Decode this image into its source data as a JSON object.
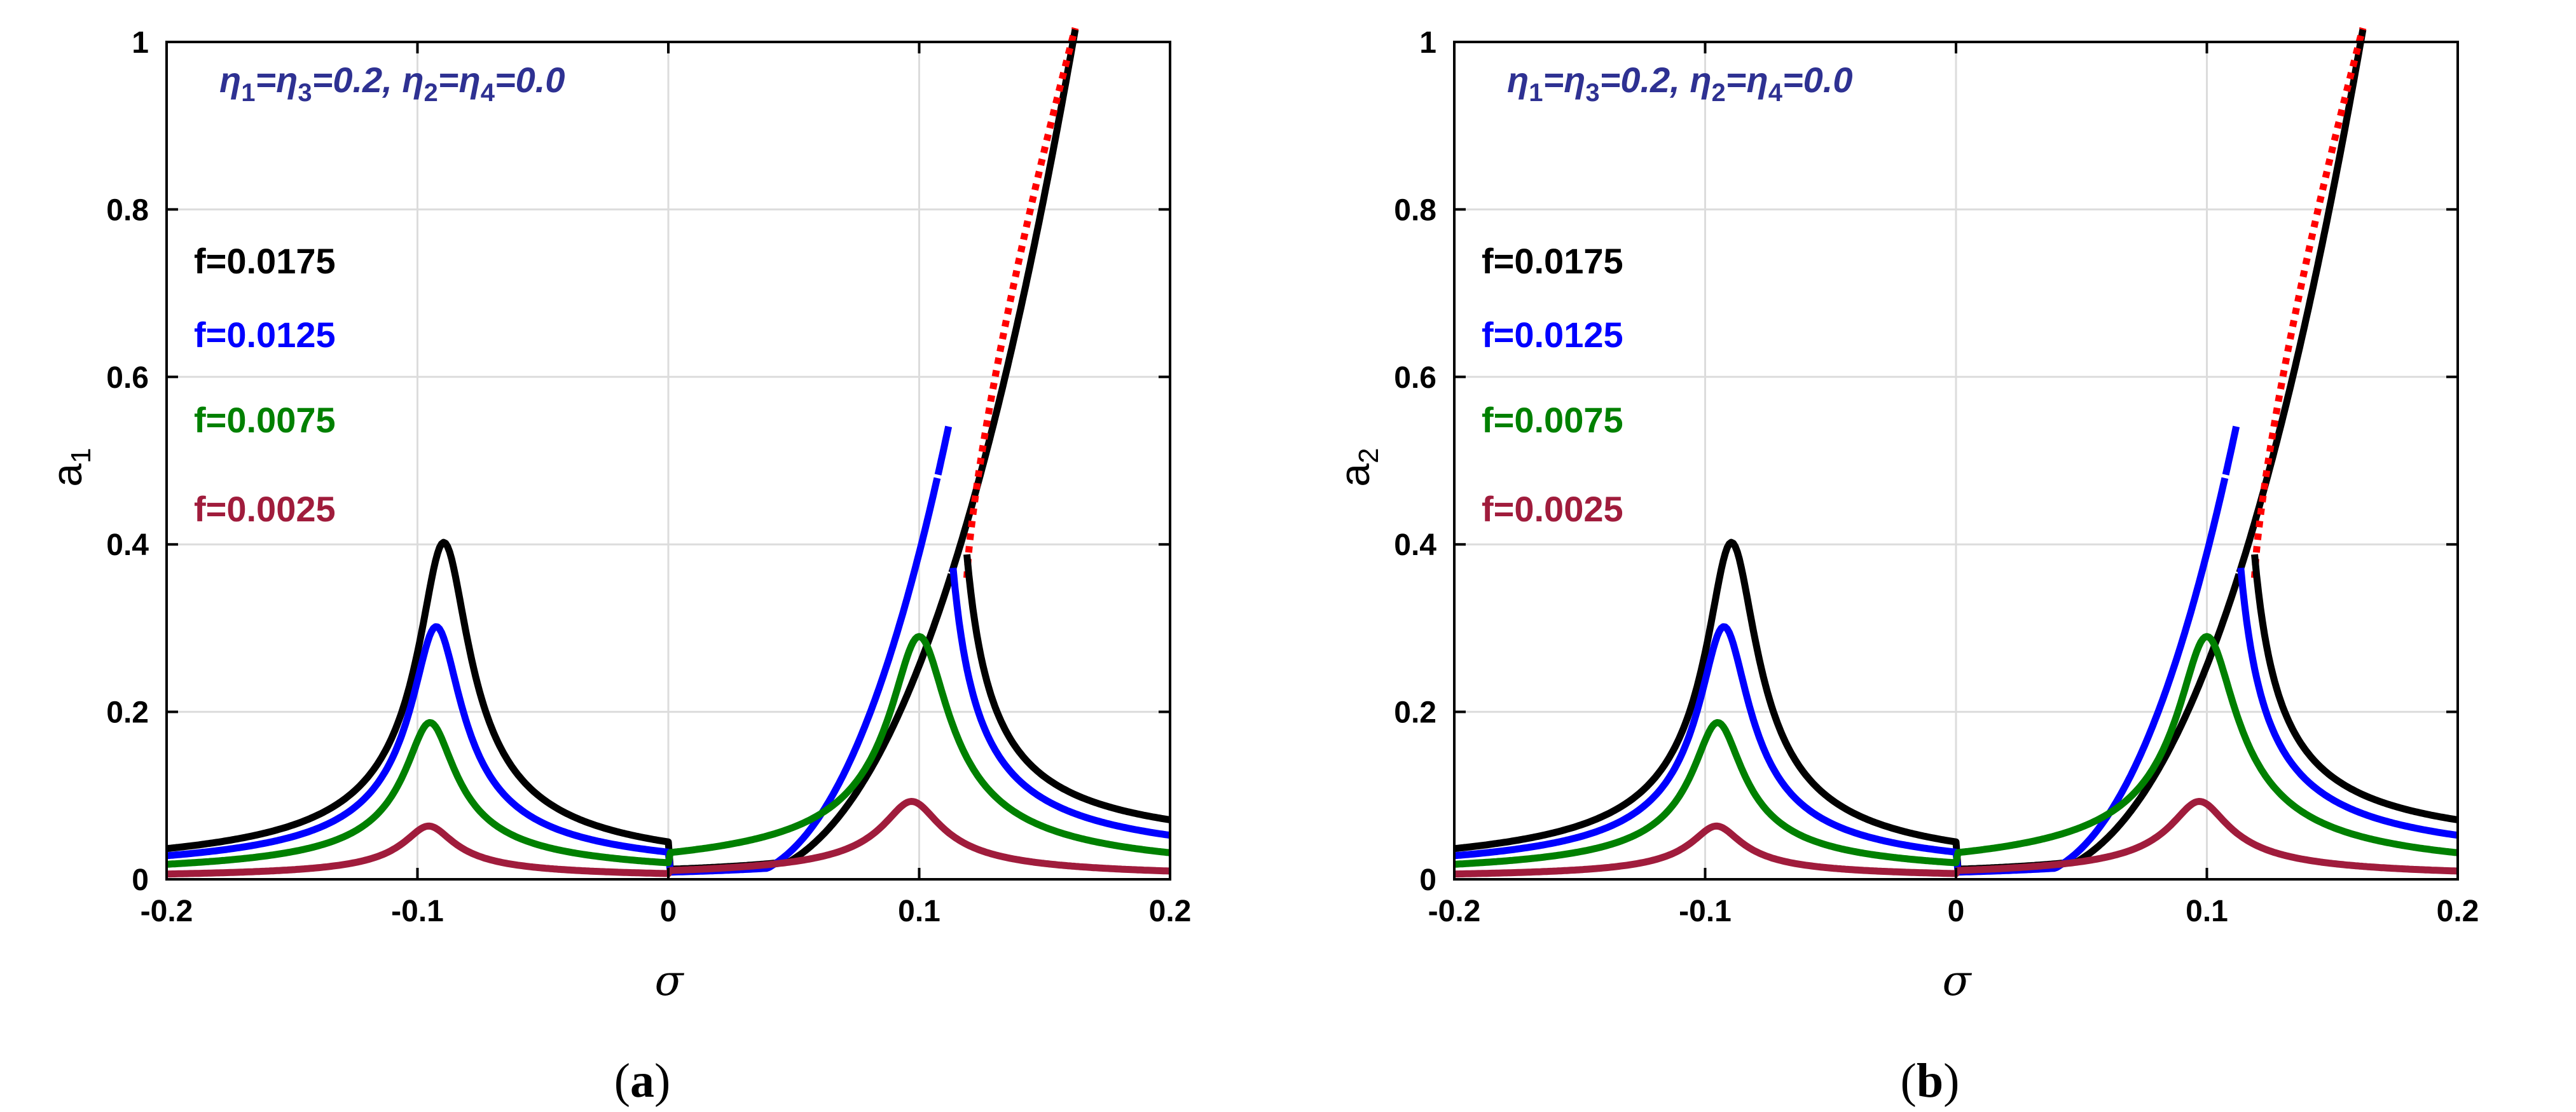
{
  "colors": {
    "f0175": "#000000",
    "f0125": "#0000ff",
    "f0075": "#008000",
    "f0025": "#a01c3c",
    "unstable": "#ff0000",
    "annotation": "#2e3192",
    "grid": "#dcdcdc"
  },
  "chart_data": [
    {
      "type": "line",
      "panel": "a",
      "caption_prefix": "(",
      "caption_letter": "a",
      "caption_suffix": ")",
      "xlabel": "σ",
      "ylabel_main": "a",
      "ylabel_sub": "1",
      "xlim": [
        -0.2,
        0.2
      ],
      "ylim": [
        0,
        1
      ],
      "xticks": [
        "-0.2",
        "-0.1",
        "0",
        "0.1",
        "0.2"
      ],
      "yticks": [
        "0",
        "0.2",
        "0.4",
        "0.6",
        "0.8",
        "1"
      ],
      "grid": true,
      "annotation": {
        "eta1": "η",
        "sub1": "1",
        "eq1": "=",
        "eta3": "η",
        "sub3": "3",
        "val13": "=0.2, ",
        "eta2": "η",
        "sub2": "2",
        "eq2": "=",
        "eta4": "η",
        "sub4": "4",
        "val24": "=0.0"
      },
      "legend": [
        "f=0.0175",
        "f=0.0125",
        "f=0.0075",
        "f=0.0025"
      ],
      "series": [
        {
          "name": "f=0.0175",
          "f": 0.0175,
          "color_key": "f0175",
          "peak_left": 0.4
        },
        {
          "name": "f=0.0125",
          "f": 0.0125,
          "color_key": "f0125",
          "peak_left": 0.3
        },
        {
          "name": "f=0.0075",
          "f": 0.0075,
          "color_key": "f0075",
          "peak_left": 0.186
        },
        {
          "name": "f=0.0025",
          "f": 0.0025,
          "color_key": "f0025",
          "peak_left": 0.063
        }
      ]
    },
    {
      "type": "line",
      "panel": "b",
      "caption_prefix": "(",
      "caption_letter": "b",
      "caption_suffix": ")",
      "xlabel": "σ",
      "ylabel_main": "a",
      "ylabel_sub": "2",
      "xlim": [
        -0.2,
        0.2
      ],
      "ylim": [
        0,
        1
      ],
      "xticks": [
        "-0.2",
        "-0.1",
        "0",
        "0.1",
        "0.2"
      ],
      "yticks": [
        "0",
        "0.2",
        "0.4",
        "0.6",
        "0.8",
        "1"
      ],
      "grid": true,
      "annotation": {
        "eta1": "η",
        "sub1": "1",
        "eq1": "=",
        "eta3": "η",
        "sub3": "3",
        "val13": "=0.2, ",
        "eta2": "η",
        "sub2": "2",
        "eq2": "=",
        "eta4": "η",
        "sub4": "4",
        "val24": "=0.0"
      },
      "legend": [
        "f=0.0175",
        "f=0.0125",
        "f=0.0075",
        "f=0.0025"
      ],
      "series": [
        {
          "name": "f=0.0175",
          "f": 0.0175,
          "color_key": "f0175",
          "peak_left": 0.4
        },
        {
          "name": "f=0.0125",
          "f": 0.0125,
          "color_key": "f0125",
          "peak_left": 0.3
        },
        {
          "name": "f=0.0075",
          "f": 0.0075,
          "color_key": "f0075",
          "peak_left": 0.186
        },
        {
          "name": "f=0.0025",
          "f": 0.0025,
          "color_key": "f0025",
          "peak_left": 0.063
        }
      ]
    }
  ]
}
